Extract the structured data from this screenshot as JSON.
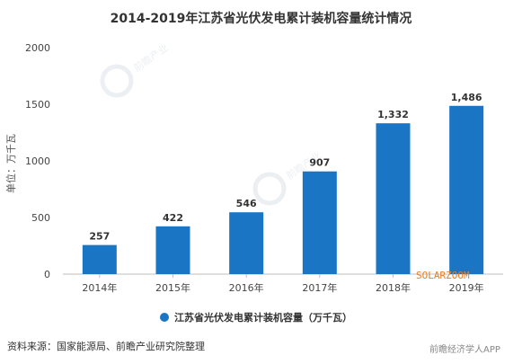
{
  "chart_data": {
    "type": "bar",
    "title": "2014-2019年江苏省光伏发电累计装机容量统计情况",
    "ylabel": "单位：万千瓦",
    "xlabel": "",
    "categories": [
      "2014年",
      "2015年",
      "2016年",
      "2017年",
      "2018年",
      "2019年"
    ],
    "series": [
      {
        "name": "江苏省光伏发电累计装机容量（万千瓦）",
        "values": [
          257,
          422,
          546,
          907,
          1332,
          1486
        ]
      }
    ],
    "data_labels": [
      "257",
      "422",
      "546",
      "907",
      "1,332",
      "1,486"
    ],
    "ylim": [
      0,
      2000
    ],
    "yticks": [
      0,
      500,
      1000,
      1500,
      2000
    ],
    "ytick_labels": [
      "0",
      "500",
      "1000",
      "1500",
      "2000"
    ],
    "grid": false,
    "legend": "bottom-center",
    "bar_color": "#1a75c4"
  },
  "source": "资料来源：国家能源局、前瞻产业研究院整理",
  "watermarks": {
    "solarzoom": "SOLARZOOM",
    "bottom_right": "前瞻经济学人APP",
    "qianzhan": "前瞻产业"
  }
}
